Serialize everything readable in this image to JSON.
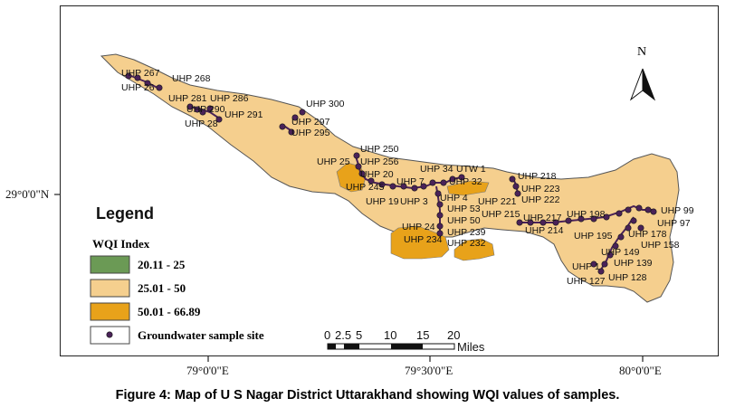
{
  "caption": "Figure 4: Map of U S Nagar District Uttarakhand showing WQI values of samples.",
  "axes": {
    "latitude_label": "29°0'0\"N",
    "longitude_labels": [
      "79°0'0\"E",
      "79°30'0\"E",
      "80°0'0\"E"
    ]
  },
  "legend": {
    "title": "Legend",
    "subtitle": "WQI Index",
    "classes": [
      {
        "label": "20.11 - 25",
        "color": "#6b9a55"
      },
      {
        "label": "25.01 - 50",
        "color": "#f5cf8e"
      },
      {
        "label": "50.01 - 66.89",
        "color": "#e8a21a"
      }
    ],
    "site_label": "Groundwater sample site",
    "site_color": "#4a2258"
  },
  "scale_bar": {
    "ticks": [
      "0",
      "2.5",
      "5",
      "10",
      "15",
      "20"
    ],
    "unit": "Miles"
  },
  "north_arrow": {
    "label": "N"
  },
  "sample_labels": [
    "UHP 267",
    "UHP 268",
    "UHP 26",
    "UHP 281",
    "UHP 286",
    "UHP 290",
    "UHP 291",
    "UHP 28",
    "UHP 300",
    "UHP 297",
    "UHP 295",
    "UHP 250",
    "UHP 256",
    "UHP 25",
    "UHP 20",
    "UHP 34",
    "UTW 1",
    "UHP 218",
    "UHP 245",
    "UHP 7",
    "UHP 19",
    "UHP 3",
    "UHP 4",
    "UHP 32",
    "UHP 223",
    "UHP 222",
    "UHP 221",
    "UHP 53",
    "UHP 50",
    "UHP 215",
    "UHP 217",
    "UHP 198",
    "UHP 99",
    "UHP 97",
    "UHP 24",
    "UHP 239",
    "UHP 214",
    "UHP 195",
    "UHP 178",
    "UHP 234",
    "UHP 232",
    "UHP 149",
    "UHP 158",
    "UHP 139",
    "UHP 1",
    "UHP 127",
    "UHP 128"
  ]
}
